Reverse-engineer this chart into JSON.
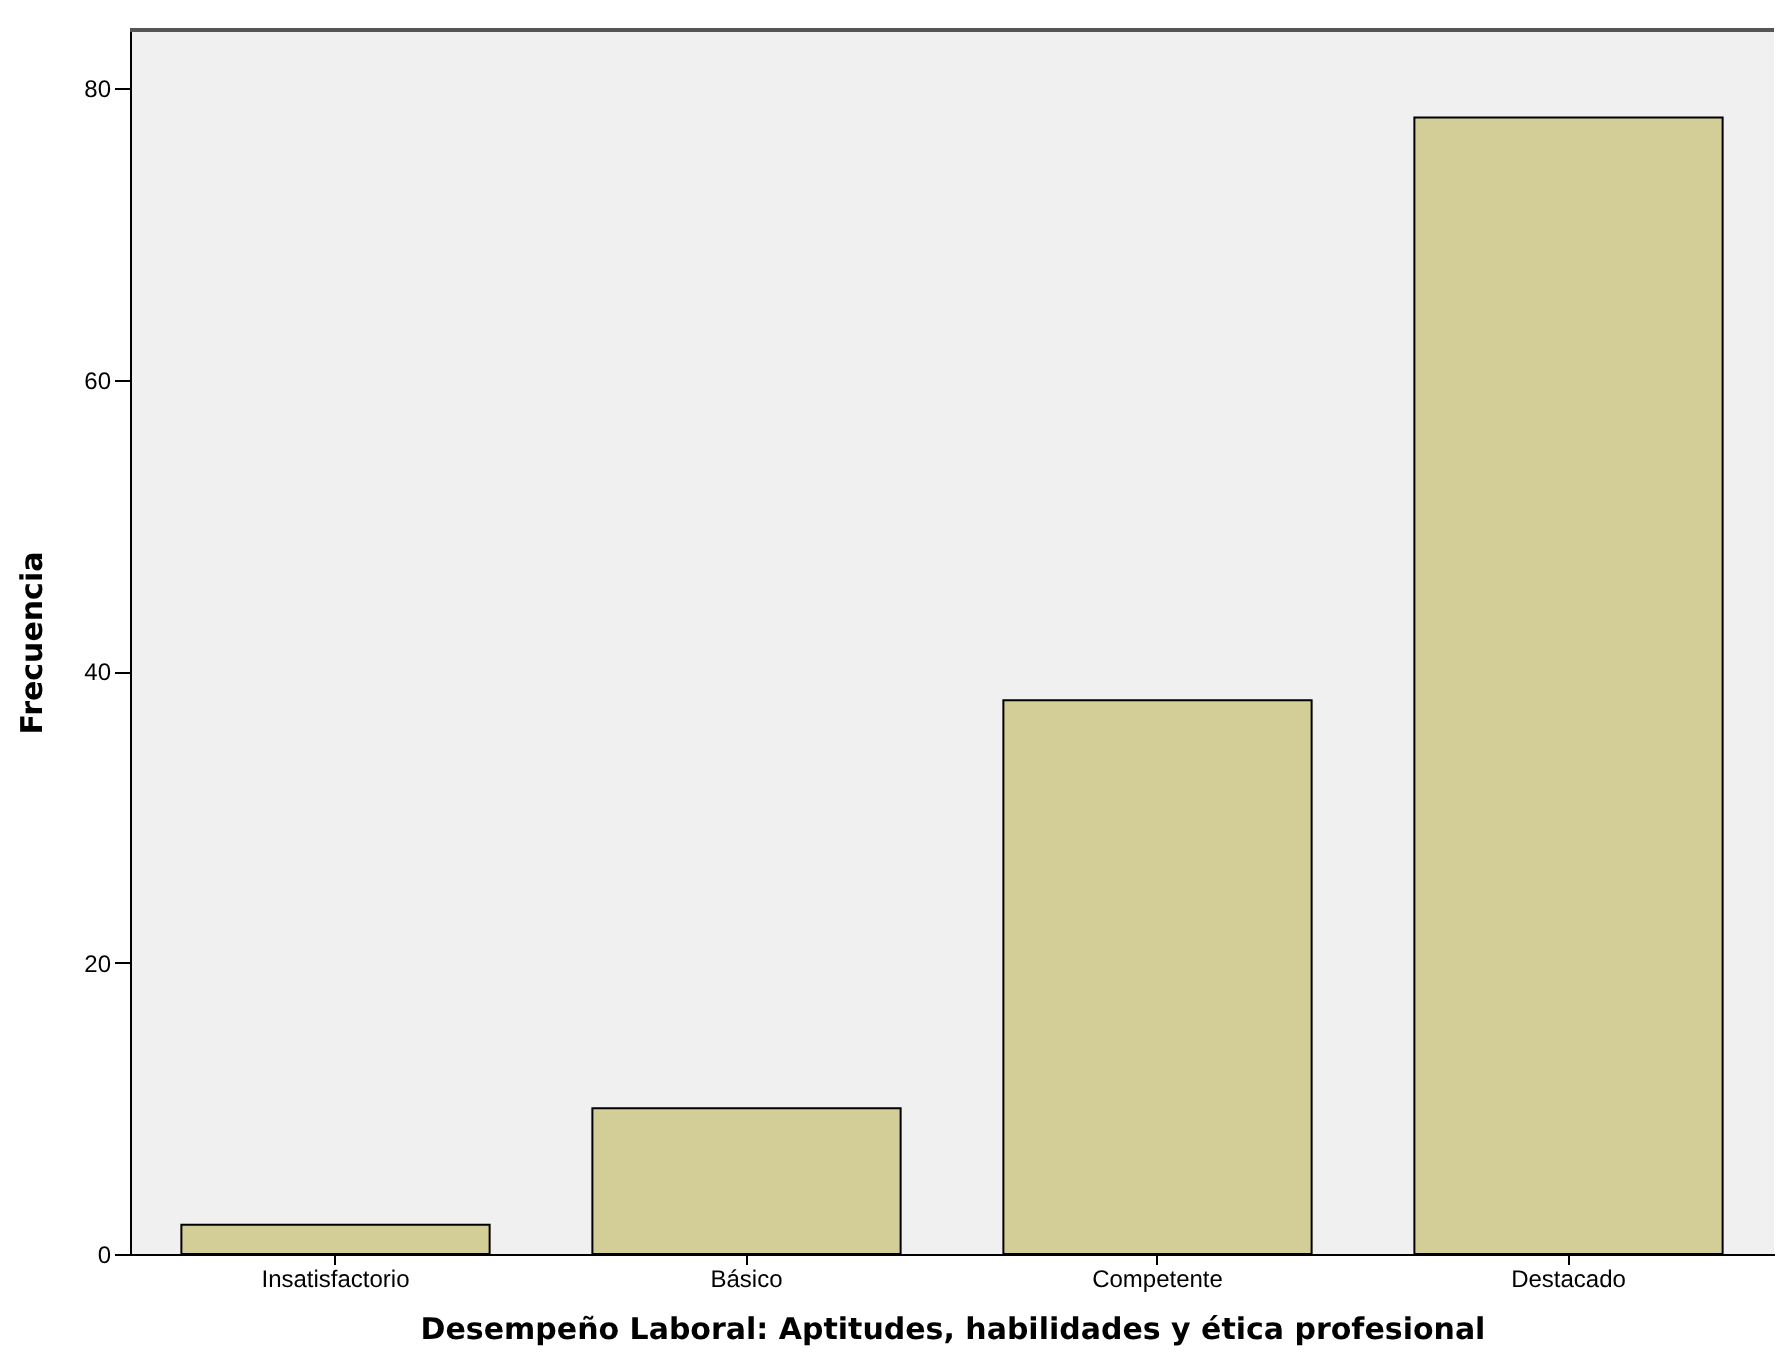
{
  "chart_data": {
    "type": "bar",
    "xlabel": "Desempeño Laboral: Aptitudes, habilidades y ética profesional",
    "ylabel": "Frecuencia",
    "categories": [
      "Insatisfactorio",
      "Básico",
      "Competente",
      "Destacado"
    ],
    "values": [
      2,
      10,
      38,
      78
    ],
    "color": "#d3ce97",
    "ylim": [
      0,
      84
    ],
    "yticks": [
      0,
      20,
      40,
      60,
      80
    ],
    "grid": false
  }
}
